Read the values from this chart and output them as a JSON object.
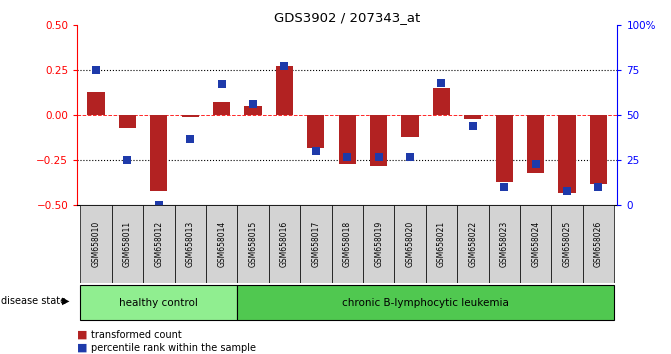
{
  "title": "GDS3902 / 207343_at",
  "samples": [
    "GSM658010",
    "GSM658011",
    "GSM658012",
    "GSM658013",
    "GSM658014",
    "GSM658015",
    "GSM658016",
    "GSM658017",
    "GSM658018",
    "GSM658019",
    "GSM658020",
    "GSM658021",
    "GSM658022",
    "GSM658023",
    "GSM658024",
    "GSM658025",
    "GSM658026"
  ],
  "red_bars": [
    0.13,
    -0.07,
    -0.42,
    -0.01,
    0.07,
    0.05,
    0.27,
    -0.18,
    -0.27,
    -0.28,
    -0.12,
    0.15,
    -0.02,
    -0.37,
    -0.32,
    -0.43,
    -0.38
  ],
  "blue_percentiles": [
    75,
    25,
    0,
    37,
    67,
    56,
    77,
    30,
    27,
    27,
    27,
    68,
    44,
    10,
    23,
    8,
    10
  ],
  "healthy_count": 5,
  "ylim": [
    -0.5,
    0.5
  ],
  "yticks_left": [
    -0.5,
    -0.25,
    0.0,
    0.25,
    0.5
  ],
  "yticks_right": [
    0,
    25,
    50,
    75,
    100
  ],
  "bar_color": "#b22222",
  "dot_color": "#1e3aaa",
  "healthy_color": "#90ee90",
  "leukemia_color": "#50c850",
  "bg_color": "#ffffff",
  "sample_box_color": "#d3d3d3",
  "healthy_label": "healthy control",
  "leukemia_label": "chronic B-lymphocytic leukemia",
  "legend_red": "transformed count",
  "legend_blue": "percentile rank within the sample",
  "disease_state_label": "disease state"
}
